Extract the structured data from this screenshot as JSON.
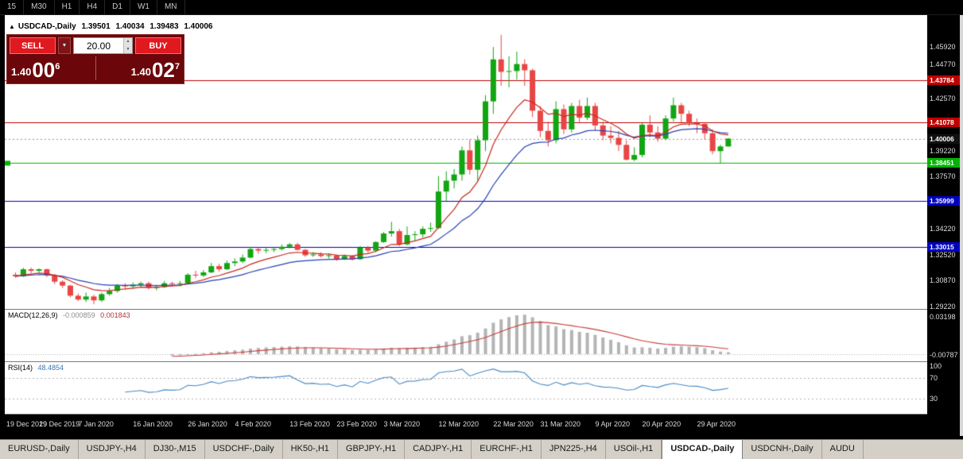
{
  "timeframe_bar": {
    "items": [
      "15",
      "M30",
      "H1",
      "H4",
      "D1",
      "W1",
      "MN"
    ]
  },
  "icons": {
    "title_arrow": "▲",
    "dropdown": "▼",
    "spinner_up": "▲",
    "spinner_down": "▼"
  },
  "chart": {
    "title": {
      "symbol": "USDCAD-,Daily",
      "open": "1.39501",
      "high": "1.40034",
      "low": "1.39483",
      "close": "1.40006"
    },
    "trade_panel": {
      "sell_label": "SELL",
      "buy_label": "BUY",
      "volume": "20.00",
      "bid": {
        "big": "1.40",
        "huge": "00",
        "sup": "6"
      },
      "ask": {
        "big": "1.40",
        "huge": "02",
        "sup": "7"
      }
    }
  },
  "chart_data": {
    "type": "candlestick",
    "symbol": "USDCAD-",
    "period": "Daily",
    "price_range": [
      1.2905,
      1.4795
    ],
    "colors": {
      "bull": "#12a512",
      "bear": "#e84545",
      "ma_fast": "#c8281e",
      "ma_slow": "#2841b4",
      "macd_hist": "#b4b4b4",
      "macd_signal": "#c83c3c",
      "rsi_line": "#4a8ac8"
    },
    "candles": [
      [
        1.3125,
        1.314,
        1.3105,
        1.3115
      ],
      [
        1.3115,
        1.317,
        1.311,
        1.316
      ],
      [
        1.316,
        1.317,
        1.3135,
        1.315
      ],
      [
        1.315,
        1.3165,
        1.314,
        1.316
      ],
      [
        1.316,
        1.3165,
        1.311,
        1.312
      ],
      [
        1.312,
        1.313,
        1.3065,
        1.308
      ],
      [
        1.308,
        1.309,
        1.304,
        1.3055
      ],
      [
        1.3055,
        1.306,
        1.298,
        1.299
      ],
      [
        1.299,
        1.3005,
        1.2955,
        1.2965
      ],
      [
        1.2965,
        1.301,
        1.295,
        1.2985
      ],
      [
        1.2985,
        1.2995,
        1.2935,
        1.296
      ],
      [
        1.296,
        1.301,
        1.295,
        1.3
      ],
      [
        1.3,
        1.304,
        1.299,
        1.302
      ],
      [
        1.302,
        1.3065,
        1.301,
        1.3055
      ],
      [
        1.3055,
        1.307,
        1.303,
        1.305
      ],
      [
        1.305,
        1.3075,
        1.3035,
        1.306
      ],
      [
        1.306,
        1.308,
        1.3045,
        1.307
      ],
      [
        1.307,
        1.308,
        1.303,
        1.304
      ],
      [
        1.304,
        1.306,
        1.3025,
        1.3045
      ],
      [
        1.3045,
        1.3085,
        1.304,
        1.307
      ],
      [
        1.307,
        1.308,
        1.3055,
        1.3065
      ],
      [
        1.3065,
        1.3085,
        1.305,
        1.307
      ],
      [
        1.307,
        1.3135,
        1.3065,
        1.3125
      ],
      [
        1.3125,
        1.315,
        1.3105,
        1.312
      ],
      [
        1.312,
        1.3155,
        1.311,
        1.314
      ],
      [
        1.314,
        1.32,
        1.3135,
        1.318
      ],
      [
        1.318,
        1.3195,
        1.3145,
        1.316
      ],
      [
        1.316,
        1.3215,
        1.3155,
        1.32
      ],
      [
        1.32,
        1.323,
        1.318,
        1.321
      ],
      [
        1.321,
        1.3255,
        1.32,
        1.3235
      ],
      [
        1.3235,
        1.3305,
        1.323,
        1.329
      ],
      [
        1.329,
        1.33,
        1.326,
        1.328
      ],
      [
        1.328,
        1.33,
        1.3265,
        1.3285
      ],
      [
        1.3285,
        1.33,
        1.327,
        1.329
      ],
      [
        1.329,
        1.332,
        1.328,
        1.3305
      ],
      [
        1.3305,
        1.333,
        1.3295,
        1.332
      ],
      [
        1.332,
        1.333,
        1.328,
        1.3285
      ],
      [
        1.3285,
        1.329,
        1.324,
        1.325
      ],
      [
        1.325,
        1.327,
        1.324,
        1.3255
      ],
      [
        1.3255,
        1.327,
        1.3235,
        1.3245
      ],
      [
        1.3245,
        1.326,
        1.323,
        1.325
      ],
      [
        1.325,
        1.3255,
        1.3215,
        1.3225
      ],
      [
        1.3225,
        1.3255,
        1.322,
        1.3245
      ],
      [
        1.3245,
        1.325,
        1.3215,
        1.3225
      ],
      [
        1.3225,
        1.331,
        1.322,
        1.33
      ],
      [
        1.33,
        1.331,
        1.3265,
        1.328
      ],
      [
        1.328,
        1.334,
        1.327,
        1.3335
      ],
      [
        1.3335,
        1.34,
        1.333,
        1.339
      ],
      [
        1.339,
        1.3465,
        1.337,
        1.3405
      ],
      [
        1.3405,
        1.342,
        1.331,
        1.332
      ],
      [
        1.332,
        1.3435,
        1.3315,
        1.338
      ],
      [
        1.338,
        1.3405,
        1.3345,
        1.3385
      ],
      [
        1.3385,
        1.3435,
        1.3365,
        1.342
      ],
      [
        1.342,
        1.346,
        1.34,
        1.3425
      ],
      [
        1.3425,
        1.376,
        1.342,
        1.366
      ],
      [
        1.366,
        1.379,
        1.36,
        1.373
      ],
      [
        1.373,
        1.3805,
        1.368,
        1.377
      ],
      [
        1.377,
        1.395,
        1.373,
        1.3925
      ],
      [
        1.3925,
        1.3995,
        1.377,
        1.38
      ],
      [
        1.38,
        1.402,
        1.373,
        1.399
      ],
      [
        1.399,
        1.428,
        1.392,
        1.424
      ],
      [
        1.424,
        1.459,
        1.416,
        1.451
      ],
      [
        1.451,
        1.4668,
        1.434,
        1.443
      ],
      [
        1.443,
        1.453,
        1.433,
        1.4435
      ],
      [
        1.4435,
        1.456,
        1.438,
        1.448
      ],
      [
        1.448,
        1.451,
        1.434,
        1.444
      ],
      [
        1.444,
        1.445,
        1.414,
        1.418
      ],
      [
        1.418,
        1.421,
        1.401,
        1.405
      ],
      [
        1.405,
        1.411,
        1.395,
        1.399
      ],
      [
        1.399,
        1.424,
        1.397,
        1.419
      ],
      [
        1.419,
        1.422,
        1.403,
        1.406
      ],
      [
        1.406,
        1.423,
        1.404,
        1.421
      ],
      [
        1.421,
        1.425,
        1.41,
        1.4135
      ],
      [
        1.4135,
        1.4265,
        1.412,
        1.421
      ],
      [
        1.421,
        1.423,
        1.405,
        1.4085
      ],
      [
        1.4085,
        1.411,
        1.399,
        1.402
      ],
      [
        1.402,
        1.408,
        1.397,
        1.4005
      ],
      [
        1.4005,
        1.405,
        1.392,
        1.396
      ],
      [
        1.396,
        1.399,
        1.386,
        1.3865
      ],
      [
        1.3865,
        1.3945,
        1.3855,
        1.3895
      ],
      [
        1.3895,
        1.41,
        1.388,
        1.409
      ],
      [
        1.409,
        1.415,
        1.401,
        1.404
      ],
      [
        1.404,
        1.408,
        1.398,
        1.4
      ],
      [
        1.4,
        1.415,
        1.399,
        1.413
      ],
      [
        1.413,
        1.4265,
        1.411,
        1.4215
      ],
      [
        1.4215,
        1.423,
        1.4105,
        1.416
      ],
      [
        1.416,
        1.418,
        1.408,
        1.41
      ],
      [
        1.41,
        1.413,
        1.4035,
        1.4095
      ],
      [
        1.4095,
        1.4105,
        1.3995,
        1.4035
      ],
      [
        1.4035,
        1.406,
        1.39,
        1.392
      ],
      [
        1.392,
        1.396,
        1.3845,
        1.395
      ],
      [
        1.39501,
        1.40034,
        1.39483,
        1.40006
      ]
    ],
    "date_labels": [
      {
        "i": 0,
        "t": "19 Dec 2019"
      },
      {
        "i": 6,
        "t": "29 Dec 2019"
      },
      {
        "i": 11,
        "t": "7 Jan 2020"
      },
      {
        "i": 18,
        "t": "16 Jan 2020"
      },
      {
        "i": 25,
        "t": "26 Jan 2020"
      },
      {
        "i": 31,
        "t": "4 Feb 2020"
      },
      {
        "i": 38,
        "t": "13 Feb 2020"
      },
      {
        "i": 44,
        "t": "23 Feb 2020"
      },
      {
        "i": 50,
        "t": "3 Mar 2020"
      },
      {
        "i": 57,
        "t": "12 Mar 2020"
      },
      {
        "i": 64,
        "t": "22 Mar 2020"
      },
      {
        "i": 70,
        "t": "31 Mar 2020"
      },
      {
        "i": 77,
        "t": "9 Apr 2020"
      },
      {
        "i": 83,
        "t": "20 Apr 2020"
      },
      {
        "i": 90,
        "t": "29 Apr 2020"
      }
    ],
    "axis_ticks": [
      {
        "p": 1.4592,
        "t": "1.45920"
      },
      {
        "p": 1.4477,
        "t": "1.44770"
      },
      {
        "p": 1.4257,
        "t": "1.42570"
      },
      {
        "p": 1.3922,
        "t": "1.39220"
      },
      {
        "p": 1.3757,
        "t": "1.37570"
      },
      {
        "p": 1.3422,
        "t": "1.34220"
      },
      {
        "p": 1.3252,
        "t": "1.32520"
      },
      {
        "p": 1.3087,
        "t": "1.30870"
      },
      {
        "p": 1.2922,
        "t": "1.29220"
      }
    ],
    "levels": [
      {
        "p": 1.43784,
        "t": "1.43784",
        "c": "#c00000",
        "line": true
      },
      {
        "p": 1.41078,
        "t": "1.41078",
        "c": "#c00000",
        "line": true
      },
      {
        "p": 1.40006,
        "t": "1.40006",
        "c": "#111111",
        "line": false
      },
      {
        "p": 1.38451,
        "t": "1.38451",
        "c": "#00b400",
        "line": true,
        "marker": true
      },
      {
        "p": 1.35999,
        "t": "1.35999",
        "c": "#0000c0",
        "line": true
      },
      {
        "p": 1.33015,
        "t": "1.33015",
        "c": "#0000c0",
        "line": true
      }
    ],
    "indicators": {
      "macd": {
        "label": "MACD(12,26,9)",
        "value_main": "-0.000859",
        "value_signal": "0.001843",
        "fast": 12,
        "slow": 26,
        "signal": 9,
        "axis_max_label": "0.03198",
        "axis_min_label": "-0.00787"
      },
      "rsi": {
        "label": "RSI(14)",
        "value": "48.4854",
        "period": 14,
        "axis_labels": [
          "100",
          "70",
          "30"
        ],
        "levels": [
          70,
          30
        ]
      }
    }
  },
  "tabs": {
    "items": [
      {
        "label": "EURUSD-,Daily"
      },
      {
        "label": "USDJPY-,H4"
      },
      {
        "label": "DJ30-,M15"
      },
      {
        "label": "USDCHF-,Daily"
      },
      {
        "label": "HK50-,H1"
      },
      {
        "label": "GBPJPY-,H1"
      },
      {
        "label": "CADJPY-,H1"
      },
      {
        "label": "EURCHF-,H1"
      },
      {
        "label": "JPN225-,H4"
      },
      {
        "label": "USOil-,H1"
      },
      {
        "label": "USDCAD-,Daily",
        "active": true
      },
      {
        "label": "USDCNH-,Daily"
      },
      {
        "label": "AUDU"
      }
    ]
  }
}
